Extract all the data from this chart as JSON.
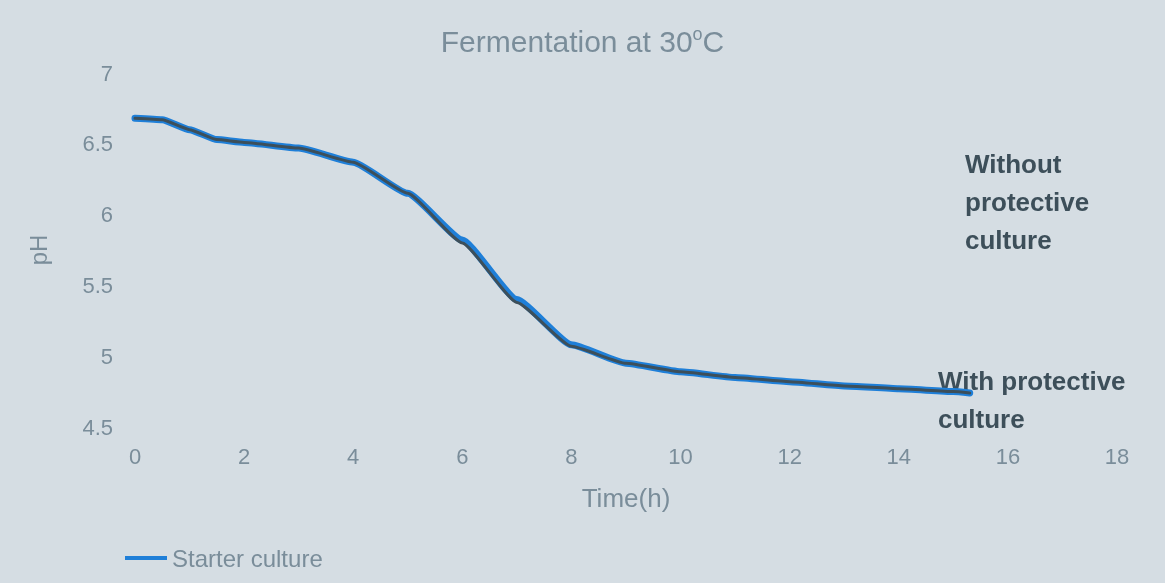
{
  "chart_data": {
    "type": "line",
    "title": "Fermentation at 30$^{o}$C",
    "xlabel": "Time(h)",
    "ylabel": "pH",
    "x": [
      0,
      0.5,
      1,
      1.5,
      2,
      3,
      4,
      5,
      6,
      7,
      8,
      9,
      10,
      11,
      12,
      13,
      14,
      15,
      15.3
    ],
    "series": [
      {
        "name": "Starter culture",
        "color": "#1f7fd8",
        "values": [
          6.68,
          6.67,
          6.6,
          6.53,
          6.51,
          6.47,
          6.37,
          6.15,
          5.82,
          5.4,
          5.08,
          4.95,
          4.89,
          4.85,
          4.82,
          4.79,
          4.77,
          4.75,
          4.74
        ]
      },
      {
        "color": "#3d4f5a",
        "values": [
          6.68,
          6.67,
          6.6,
          6.53,
          6.51,
          6.47,
          6.37,
          6.15,
          5.8,
          5.38,
          5.07,
          4.95,
          4.89,
          4.85,
          4.82,
          4.79,
          4.77,
          4.75,
          4.74
        ]
      }
    ],
    "xlim": [
      0,
      18
    ],
    "xticks": [
      0,
      2,
      4,
      6,
      8,
      10,
      12,
      14,
      16,
      18
    ],
    "ylim": [
      4.5,
      7
    ],
    "yticks": [
      4.5,
      5,
      5.5,
      6,
      6.5,
      7
    ],
    "annotations": [
      "Without protective culture",
      "With protective culture"
    ],
    "grid": false,
    "legend": "bottom left",
    "marker": "none",
    "line_style": "solid"
  }
}
